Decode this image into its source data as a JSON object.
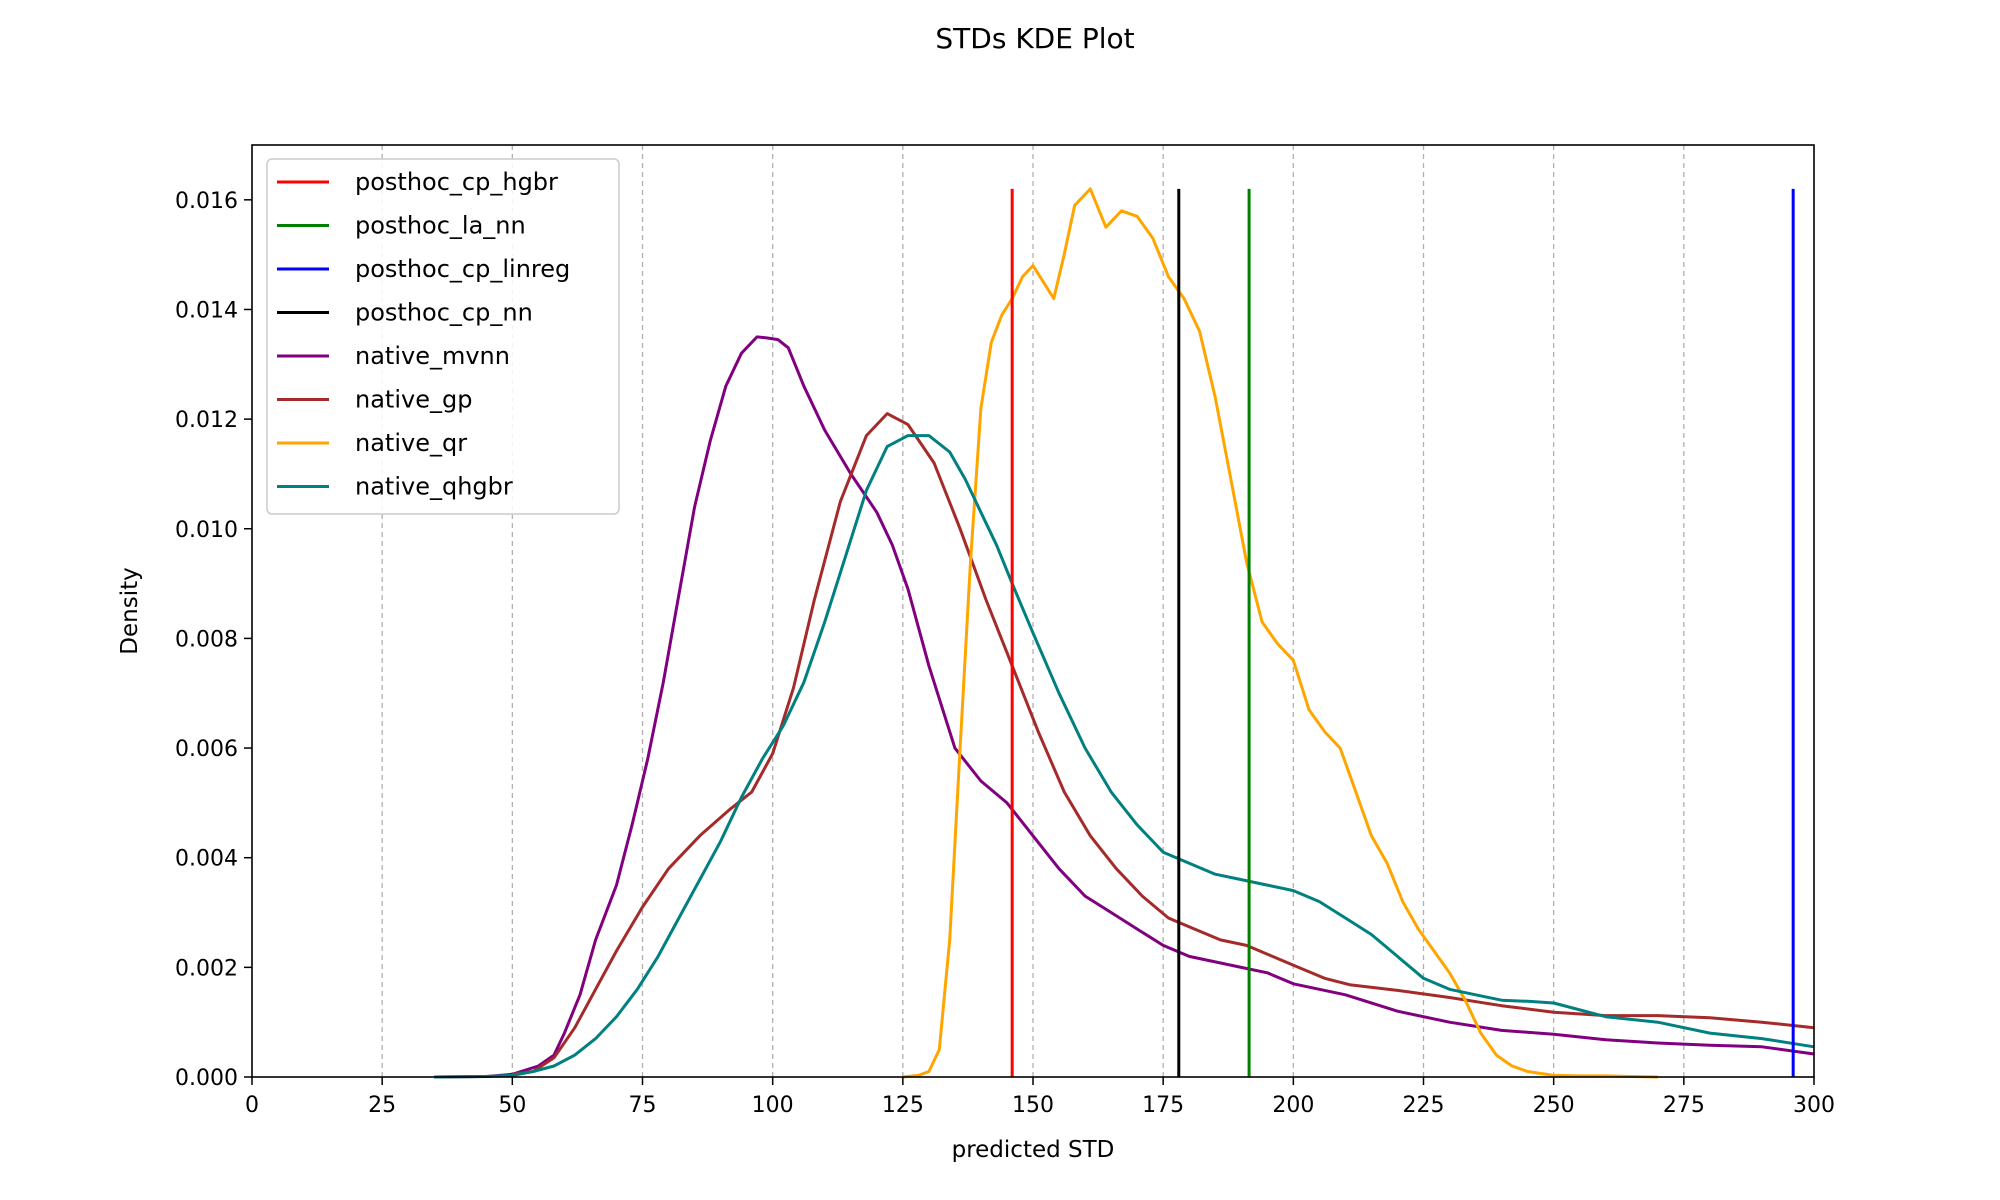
{
  "chart_data": {
    "type": "line",
    "title": "STDs KDE Plot",
    "xlabel": "predicted STD",
    "ylabel": "Density",
    "xlim": [
      0,
      300
    ],
    "ylim": [
      0,
      0.017
    ],
    "xticks": [
      0,
      25,
      50,
      75,
      100,
      125,
      150,
      175,
      200,
      225,
      250,
      275,
      300
    ],
    "yticks": [
      0.0,
      0.002,
      0.004,
      0.006,
      0.008,
      0.01,
      0.012,
      0.014,
      0.016
    ],
    "ytick_labels": [
      "0.000",
      "0.002",
      "0.004",
      "0.006",
      "0.008",
      "0.010",
      "0.012",
      "0.014",
      "0.016"
    ],
    "grid": "x-dashed",
    "legend_position": "upper-left",
    "vlines": [
      {
        "name": "posthoc_cp_hgbr",
        "color": "#ff0000",
        "x": 146,
        "ymax": 0.0162
      },
      {
        "name": "posthoc_la_nn",
        "color": "#008000",
        "x": 191.5,
        "ymax": 0.0162
      },
      {
        "name": "posthoc_cp_linreg",
        "color": "#0000ff",
        "x": 296,
        "ymax": 0.0162
      },
      {
        "name": "posthoc_cp_nn",
        "color": "#000000",
        "x": 178,
        "ymax": 0.0162
      }
    ],
    "series": [
      {
        "name": "native_mvnn",
        "color": "#800080",
        "x": [
          35,
          45,
          50,
          55,
          58,
          60,
          63,
          66,
          70,
          73,
          76,
          79,
          82,
          85,
          88,
          91,
          94,
          97,
          99,
          101,
          103,
          106,
          110,
          115,
          120,
          123,
          126,
          130,
          135,
          140,
          145,
          150,
          155,
          160,
          165,
          170,
          175,
          180,
          185,
          190,
          195,
          200,
          205,
          210,
          220,
          230,
          240,
          250,
          260,
          270,
          280,
          290,
          300
        ],
        "y": [
          0,
          1e-05,
          5e-05,
          0.0002,
          0.0004,
          0.0008,
          0.0015,
          0.0025,
          0.0035,
          0.0046,
          0.0058,
          0.0072,
          0.0088,
          0.0104,
          0.0116,
          0.0126,
          0.0132,
          0.0135,
          0.01348,
          0.01345,
          0.0133,
          0.0126,
          0.0118,
          0.011,
          0.0103,
          0.0097,
          0.0089,
          0.0075,
          0.006,
          0.0054,
          0.005,
          0.0044,
          0.0038,
          0.0033,
          0.003,
          0.0027,
          0.0024,
          0.0022,
          0.0021,
          0.002,
          0.0019,
          0.0017,
          0.0016,
          0.0015,
          0.0012,
          0.001,
          0.00085,
          0.00078,
          0.00068,
          0.00062,
          0.00058,
          0.00055,
          0.00042
        ]
      },
      {
        "name": "native_gp",
        "color": "#a52a2a",
        "x": [
          50,
          54,
          58,
          62,
          66,
          70,
          75,
          80,
          86,
          92,
          96,
          100,
          104,
          108,
          113,
          118,
          122,
          126,
          131,
          136,
          141,
          146,
          151,
          156,
          161,
          166,
          171,
          176,
          181,
          186,
          191,
          196,
          201,
          206,
          211,
          220,
          230,
          240,
          250,
          260,
          270,
          280,
          290,
          300
        ],
        "y": [
          5e-05,
          0.0001,
          0.00035,
          0.0009,
          0.0016,
          0.0023,
          0.0031,
          0.0038,
          0.0044,
          0.0049,
          0.0052,
          0.0059,
          0.0071,
          0.0087,
          0.0105,
          0.0117,
          0.0121,
          0.0119,
          0.0112,
          0.01,
          0.0087,
          0.0075,
          0.0063,
          0.0052,
          0.0044,
          0.0038,
          0.0033,
          0.0029,
          0.0027,
          0.0025,
          0.0024,
          0.0022,
          0.002,
          0.0018,
          0.00168,
          0.00158,
          0.00145,
          0.0013,
          0.00118,
          0.00112,
          0.00112,
          0.00108,
          0.001,
          0.0009
        ]
      },
      {
        "name": "native_qr",
        "color": "#ffa500",
        "x": [
          125,
          128,
          130,
          132,
          134,
          136,
          138,
          140,
          142,
          144,
          146,
          148,
          150,
          152,
          154,
          156,
          158,
          161,
          164,
          167,
          170,
          173,
          176,
          179,
          182,
          185,
          188,
          191,
          194,
          197,
          200,
          203,
          206,
          209,
          212,
          215,
          218,
          221,
          224,
          227,
          230,
          233,
          236,
          239,
          242,
          245,
          250,
          255,
          260,
          265,
          270
        ],
        "y": [
          0,
          3e-05,
          0.0001,
          0.0005,
          0.0025,
          0.006,
          0.0094,
          0.0122,
          0.0134,
          0.0139,
          0.0142,
          0.0146,
          0.0148,
          0.0145,
          0.0142,
          0.015,
          0.0159,
          0.0162,
          0.0155,
          0.0158,
          0.0157,
          0.0153,
          0.0146,
          0.0142,
          0.0136,
          0.0124,
          0.0109,
          0.0094,
          0.0083,
          0.0079,
          0.0076,
          0.0067,
          0.0063,
          0.006,
          0.0052,
          0.0044,
          0.0039,
          0.0032,
          0.0027,
          0.0023,
          0.0019,
          0.0014,
          0.0008,
          0.0004,
          0.0002,
          0.0001,
          3e-05,
          2e-05,
          2e-05,
          1e-05,
          0.0
        ]
      },
      {
        "name": "native_qhgbr",
        "color": "#008080",
        "x": [
          35,
          45,
          50,
          54,
          58,
          62,
          66,
          70,
          74,
          78,
          82,
          86,
          90,
          94,
          98,
          102,
          106,
          110,
          114,
          118,
          122,
          126,
          130,
          134,
          137,
          140,
          143,
          146,
          150,
          155,
          160,
          165,
          170,
          175,
          180,
          185,
          190,
          195,
          200,
          205,
          210,
          215,
          220,
          225,
          230,
          235,
          240,
          245,
          250,
          260,
          270,
          280,
          290,
          300
        ],
        "y": [
          0,
          1e-05,
          3e-05,
          0.0001,
          0.0002,
          0.0004,
          0.0007,
          0.0011,
          0.0016,
          0.0022,
          0.0029,
          0.0036,
          0.0043,
          0.0051,
          0.0058,
          0.0064,
          0.0072,
          0.0083,
          0.0095,
          0.0107,
          0.0115,
          0.0117,
          0.0117,
          0.0114,
          0.0109,
          0.0103,
          0.0097,
          0.009,
          0.0081,
          0.007,
          0.006,
          0.0052,
          0.0046,
          0.0041,
          0.0039,
          0.0037,
          0.0036,
          0.0035,
          0.0034,
          0.0032,
          0.0029,
          0.0026,
          0.0022,
          0.0018,
          0.0016,
          0.0015,
          0.0014,
          0.00138,
          0.00135,
          0.0011,
          0.001,
          0.0008,
          0.0007,
          0.00055
        ]
      }
    ],
    "legend_order": [
      "posthoc_cp_hgbr",
      "posthoc_la_nn",
      "posthoc_cp_linreg",
      "posthoc_cp_nn",
      "native_mvnn",
      "native_gp",
      "native_qr",
      "native_qhgbr"
    ]
  }
}
